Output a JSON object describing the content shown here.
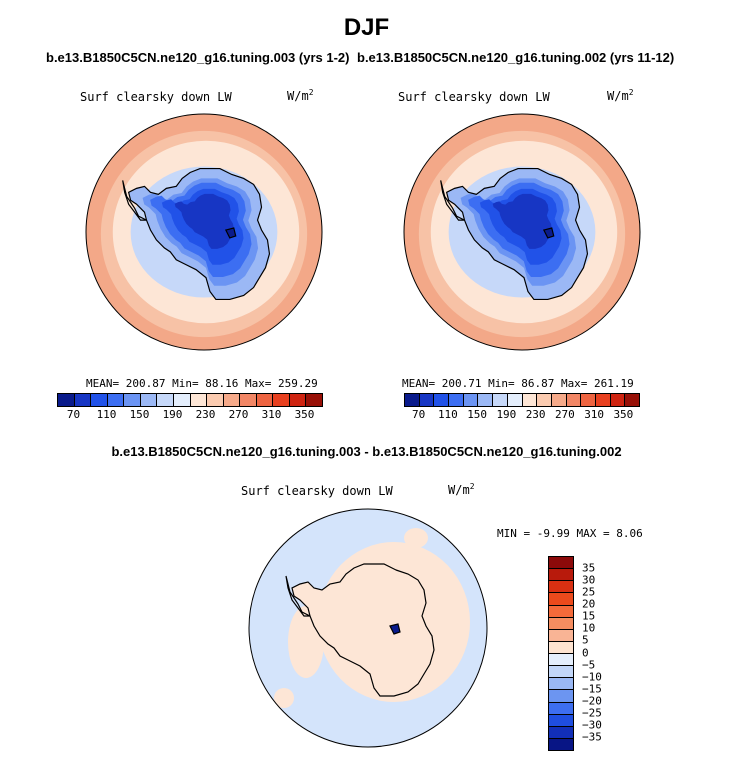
{
  "title": "DJF",
  "panels": [
    {
      "case": "b.e13.B1850C5CN.ne120_g16.tuning.003 (yrs 1-2)",
      "variable": "Surf clearsky down LW",
      "units": "W/m",
      "units_exp": "2",
      "stats": "MEAN= 200.87  Min=  88.16  Max= 259.29"
    },
    {
      "case": "b.e13.B1850C5CN.ne120_g16.tuning.002 (yrs 11-12)",
      "variable": "Surf clearsky down LW",
      "units": "W/m",
      "units_exp": "2",
      "stats": "MEAN= 200.71  Min=  86.87  Max= 261.19"
    }
  ],
  "colorbar": {
    "labels": [
      "70",
      "110",
      "150",
      "190",
      "230",
      "270",
      "310",
      "350"
    ],
    "colors": [
      "#0a1b8c",
      "#1736c4",
      "#2152e8",
      "#3c6ef2",
      "#6b94f3",
      "#9bb8f5",
      "#c6d8f9",
      "#e4eefc",
      "#fde6d6",
      "#fbcbb0",
      "#f6aa8a",
      "#f28665",
      "#ee6441",
      "#e8401f",
      "#cf2411",
      "#981007"
    ]
  },
  "difference": {
    "title": "b.e13.B1850C5CN.ne120_g16.tuning.003 - b.e13.B1850C5CN.ne120_g16.tuning.002",
    "variable": "Surf clearsky down LW",
    "units": "W/m",
    "units_exp": "2",
    "minmax": "MIN =  -9.99  MAX =   8.06",
    "labels": [
      "35",
      "30",
      "25",
      "20",
      "15",
      "10",
      "5",
      "0",
      "−5",
      "−10",
      "−15",
      "−20",
      "−25",
      "−30",
      "−35"
    ],
    "colors": [
      "#8c0a0a",
      "#b81a0c",
      "#d93012",
      "#ec4a1c",
      "#f46a3a",
      "#f68d60",
      "#f9b495",
      "#fde3d0",
      "#e4eefc",
      "#c2d6f8",
      "#9ab8f4",
      "#6c95f1",
      "#3d6ef0",
      "#1f4ee0",
      "#122fb8",
      "#081585"
    ]
  },
  "map_colors": {
    "outer": "#f3a888",
    "outer2": "#f7c2a6",
    "ring": "#fde6d6",
    "ocean_near": "#c6d8f9",
    "ice1": "#9bb8f5",
    "ice2": "#6b94f3",
    "ice3": "#3c6ef2",
    "ice4": "#2152e8",
    "ice5": "#1736c4",
    "diff_pos": "#fde6d6",
    "diff_neg": "#d4e4fb"
  }
}
